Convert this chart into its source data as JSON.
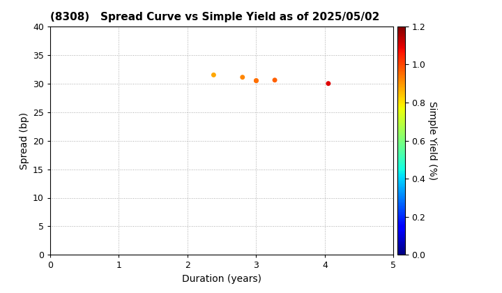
{
  "title": "(8308)   Spread Curve vs Simple Yield as of 2025/05/02",
  "xlabel": "Duration (years)",
  "ylabel": "Spread (bp)",
  "colorbar_label": "Simple Yield (%)",
  "xlim": [
    0,
    5
  ],
  "ylim": [
    0,
    40
  ],
  "xticks": [
    0,
    1,
    2,
    3,
    4,
    5
  ],
  "yticks": [
    0,
    5,
    10,
    15,
    20,
    25,
    30,
    35,
    40
  ],
  "points": [
    {
      "duration": 2.38,
      "spread": 31.5,
      "simple_yield": 0.88
    },
    {
      "duration": 2.8,
      "spread": 31.1,
      "simple_yield": 0.92
    },
    {
      "duration": 3.0,
      "spread": 30.5,
      "simple_yield": 0.95
    },
    {
      "duration": 3.0,
      "spread": 30.5,
      "simple_yield": 0.95
    },
    {
      "duration": 3.27,
      "spread": 30.6,
      "simple_yield": 0.97
    },
    {
      "duration": 4.05,
      "spread": 30.0,
      "simple_yield": 1.1
    }
  ],
  "clim": [
    0.0,
    1.2
  ],
  "cticks": [
    0.0,
    0.2,
    0.4,
    0.6,
    0.8,
    1.0,
    1.2
  ],
  "marker_size": 25,
  "background_color": "#ffffff",
  "grid_color": "#aaaaaa",
  "title_fontsize": 11,
  "axis_label_fontsize": 10,
  "tick_fontsize": 9
}
